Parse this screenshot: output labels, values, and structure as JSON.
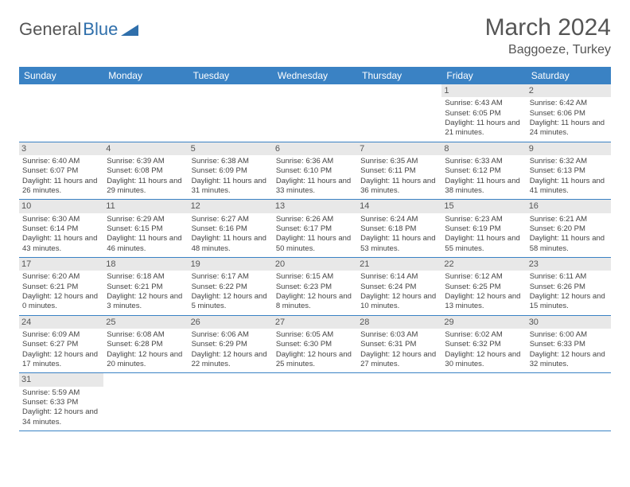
{
  "logo": {
    "general": "General",
    "blue": "Blue"
  },
  "title": "March 2024",
  "location": "Baggoeze, Turkey",
  "colors": {
    "header_bg": "#3a82c4",
    "header_text": "#ffffff",
    "daynum_bg": "#e8e8e8",
    "border": "#3a82c4",
    "logo_gray": "#555555",
    "logo_blue": "#2f6fab"
  },
  "daysOfWeek": [
    "Sunday",
    "Monday",
    "Tuesday",
    "Wednesday",
    "Thursday",
    "Friday",
    "Saturday"
  ],
  "startOffset": 5,
  "days": [
    {
      "n": 1,
      "sunrise": "6:43 AM",
      "sunset": "6:05 PM",
      "day_h": 11,
      "day_m": 21
    },
    {
      "n": 2,
      "sunrise": "6:42 AM",
      "sunset": "6:06 PM",
      "day_h": 11,
      "day_m": 24
    },
    {
      "n": 3,
      "sunrise": "6:40 AM",
      "sunset": "6:07 PM",
      "day_h": 11,
      "day_m": 26
    },
    {
      "n": 4,
      "sunrise": "6:39 AM",
      "sunset": "6:08 PM",
      "day_h": 11,
      "day_m": 29
    },
    {
      "n": 5,
      "sunrise": "6:38 AM",
      "sunset": "6:09 PM",
      "day_h": 11,
      "day_m": 31
    },
    {
      "n": 6,
      "sunrise": "6:36 AM",
      "sunset": "6:10 PM",
      "day_h": 11,
      "day_m": 33
    },
    {
      "n": 7,
      "sunrise": "6:35 AM",
      "sunset": "6:11 PM",
      "day_h": 11,
      "day_m": 36
    },
    {
      "n": 8,
      "sunrise": "6:33 AM",
      "sunset": "6:12 PM",
      "day_h": 11,
      "day_m": 38
    },
    {
      "n": 9,
      "sunrise": "6:32 AM",
      "sunset": "6:13 PM",
      "day_h": 11,
      "day_m": 41
    },
    {
      "n": 10,
      "sunrise": "6:30 AM",
      "sunset": "6:14 PM",
      "day_h": 11,
      "day_m": 43
    },
    {
      "n": 11,
      "sunrise": "6:29 AM",
      "sunset": "6:15 PM",
      "day_h": 11,
      "day_m": 46
    },
    {
      "n": 12,
      "sunrise": "6:27 AM",
      "sunset": "6:16 PM",
      "day_h": 11,
      "day_m": 48
    },
    {
      "n": 13,
      "sunrise": "6:26 AM",
      "sunset": "6:17 PM",
      "day_h": 11,
      "day_m": 50
    },
    {
      "n": 14,
      "sunrise": "6:24 AM",
      "sunset": "6:18 PM",
      "day_h": 11,
      "day_m": 53
    },
    {
      "n": 15,
      "sunrise": "6:23 AM",
      "sunset": "6:19 PM",
      "day_h": 11,
      "day_m": 55
    },
    {
      "n": 16,
      "sunrise": "6:21 AM",
      "sunset": "6:20 PM",
      "day_h": 11,
      "day_m": 58
    },
    {
      "n": 17,
      "sunrise": "6:20 AM",
      "sunset": "6:21 PM",
      "day_h": 12,
      "day_m": 0
    },
    {
      "n": 18,
      "sunrise": "6:18 AM",
      "sunset": "6:21 PM",
      "day_h": 12,
      "day_m": 3
    },
    {
      "n": 19,
      "sunrise": "6:17 AM",
      "sunset": "6:22 PM",
      "day_h": 12,
      "day_m": 5
    },
    {
      "n": 20,
      "sunrise": "6:15 AM",
      "sunset": "6:23 PM",
      "day_h": 12,
      "day_m": 8
    },
    {
      "n": 21,
      "sunrise": "6:14 AM",
      "sunset": "6:24 PM",
      "day_h": 12,
      "day_m": 10
    },
    {
      "n": 22,
      "sunrise": "6:12 AM",
      "sunset": "6:25 PM",
      "day_h": 12,
      "day_m": 13
    },
    {
      "n": 23,
      "sunrise": "6:11 AM",
      "sunset": "6:26 PM",
      "day_h": 12,
      "day_m": 15
    },
    {
      "n": 24,
      "sunrise": "6:09 AM",
      "sunset": "6:27 PM",
      "day_h": 12,
      "day_m": 17
    },
    {
      "n": 25,
      "sunrise": "6:08 AM",
      "sunset": "6:28 PM",
      "day_h": 12,
      "day_m": 20
    },
    {
      "n": 26,
      "sunrise": "6:06 AM",
      "sunset": "6:29 PM",
      "day_h": 12,
      "day_m": 22
    },
    {
      "n": 27,
      "sunrise": "6:05 AM",
      "sunset": "6:30 PM",
      "day_h": 12,
      "day_m": 25
    },
    {
      "n": 28,
      "sunrise": "6:03 AM",
      "sunset": "6:31 PM",
      "day_h": 12,
      "day_m": 27
    },
    {
      "n": 29,
      "sunrise": "6:02 AM",
      "sunset": "6:32 PM",
      "day_h": 12,
      "day_m": 30
    },
    {
      "n": 30,
      "sunrise": "6:00 AM",
      "sunset": "6:33 PM",
      "day_h": 12,
      "day_m": 32
    },
    {
      "n": 31,
      "sunrise": "5:59 AM",
      "sunset": "6:33 PM",
      "day_h": 12,
      "day_m": 34
    }
  ],
  "labels": {
    "sunrise": "Sunrise:",
    "sunset": "Sunset:",
    "daylight": "Daylight:",
    "hours": "hours",
    "and": "and",
    "minutes": "minutes."
  }
}
